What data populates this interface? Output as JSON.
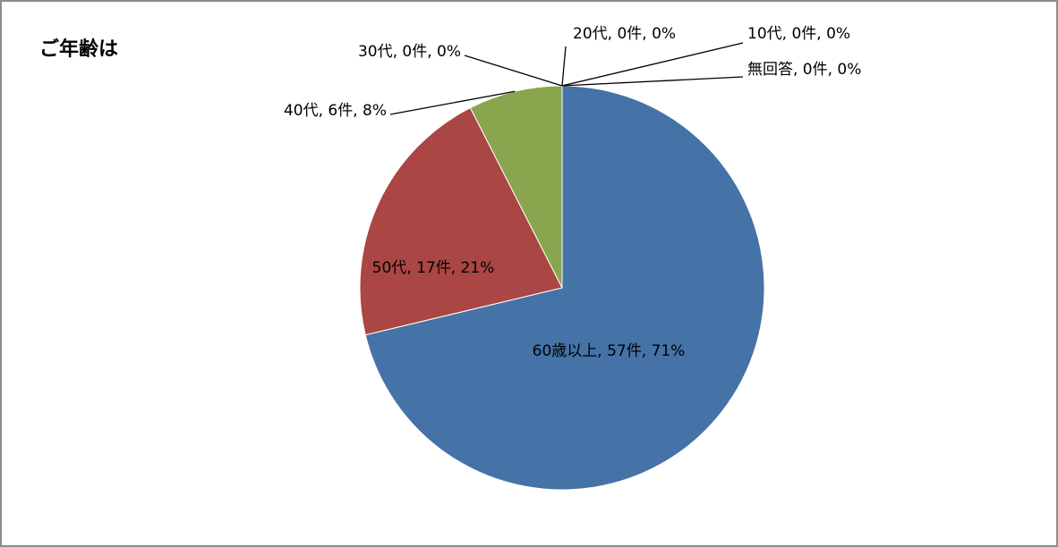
{
  "chart_data": {
    "type": "pie",
    "title": "ご年齢は",
    "categories": [
      "60歳以上",
      "50代",
      "40代",
      "30代",
      "20代",
      "10代",
      "無回答"
    ],
    "values": [
      57,
      17,
      6,
      0,
      0,
      0,
      0
    ],
    "value_labels": [
      "60歳以上, 57件, 71%",
      "50代, 17件, 21%",
      "40代, 6件, 8%",
      "30代, 0件, 0%",
      "20代, 0件, 0%",
      "10代, 0件, 0%",
      "無回答, 0件, 0%"
    ],
    "colors": [
      "#4572a7",
      "#aa4643",
      "#89a54e",
      "#71588f",
      "#4198af",
      "#db843d",
      "#93a9cf"
    ]
  }
}
